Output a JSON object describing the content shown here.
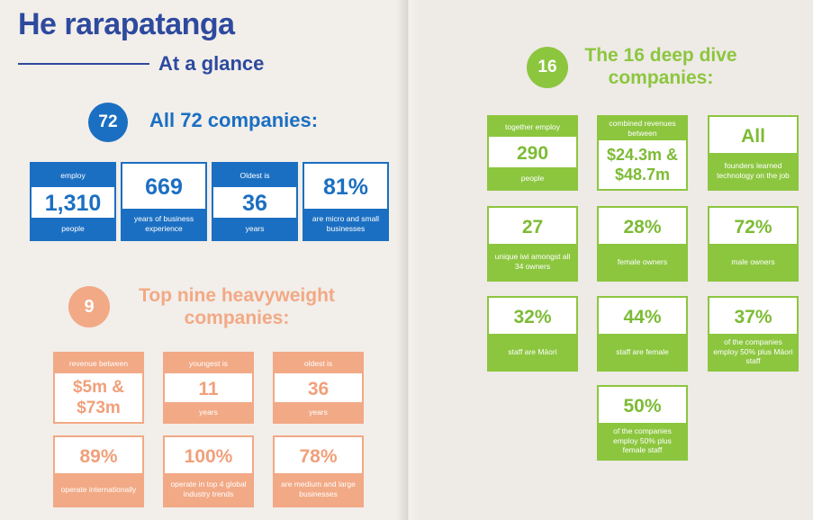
{
  "header": {
    "title": "He rarapatanga",
    "subtitle": "At a glance"
  },
  "section_all": {
    "badge": "72",
    "heading": "All 72 companies:"
  },
  "all_stats": [
    {
      "top": "employ",
      "value": "1,310",
      "bottom": "people"
    },
    {
      "value": "669",
      "bottom": "years of business experience"
    },
    {
      "top": "Oldest is",
      "value": "36",
      "bottom": "years"
    },
    {
      "value": "81%",
      "bottom": "are micro and small businesses"
    }
  ],
  "section_nine": {
    "badge": "9",
    "heading_line1": "Top nine heavyweight",
    "heading_line2": "companies:"
  },
  "nine_stats": [
    {
      "top": "revenue between",
      "value_line1": "$5m &",
      "value_line2": "$73m"
    },
    {
      "top": "youngest is",
      "value": "11",
      "bottom": "years"
    },
    {
      "top": "oldest is",
      "value": "36",
      "bottom": "years"
    },
    {
      "value": "89%",
      "bottom": "operate internationally"
    },
    {
      "value": "100%",
      "bottom": "operate in top 4 global industry trends"
    },
    {
      "value": "78%",
      "bottom": "are medium and large businesses"
    }
  ],
  "section_deep": {
    "badge": "16",
    "heading_line1": "The 16 deep dive",
    "heading_line2": "companies:"
  },
  "deep_stats": [
    {
      "top": "together employ",
      "value": "290",
      "bottom": "people"
    },
    {
      "top": "combined revenues between",
      "value_line1": "$24.3m &",
      "value_line2": "$48.7m"
    },
    {
      "value": "All",
      "bottom": "founders learned technology on the job"
    },
    {
      "value": "27",
      "bottom": "unique iwi amongst all 34 owners"
    },
    {
      "value": "28%",
      "bottom": "female owners"
    },
    {
      "value": "72%",
      "bottom": "male owners"
    },
    {
      "value": "32%",
      "bottom": "staff are Māori"
    },
    {
      "value": "44%",
      "bottom": "staff are female"
    },
    {
      "value": "37%",
      "bottom": "of the companies employ 50% plus Māori staff"
    },
    {
      "value": "50%",
      "bottom": "of the companies employ 50% plus female staff"
    }
  ],
  "colors": {
    "blue": "#1b6fc2",
    "navy": "#2d4a9e",
    "orange": "#f2a985",
    "green": "#8cc63f"
  }
}
